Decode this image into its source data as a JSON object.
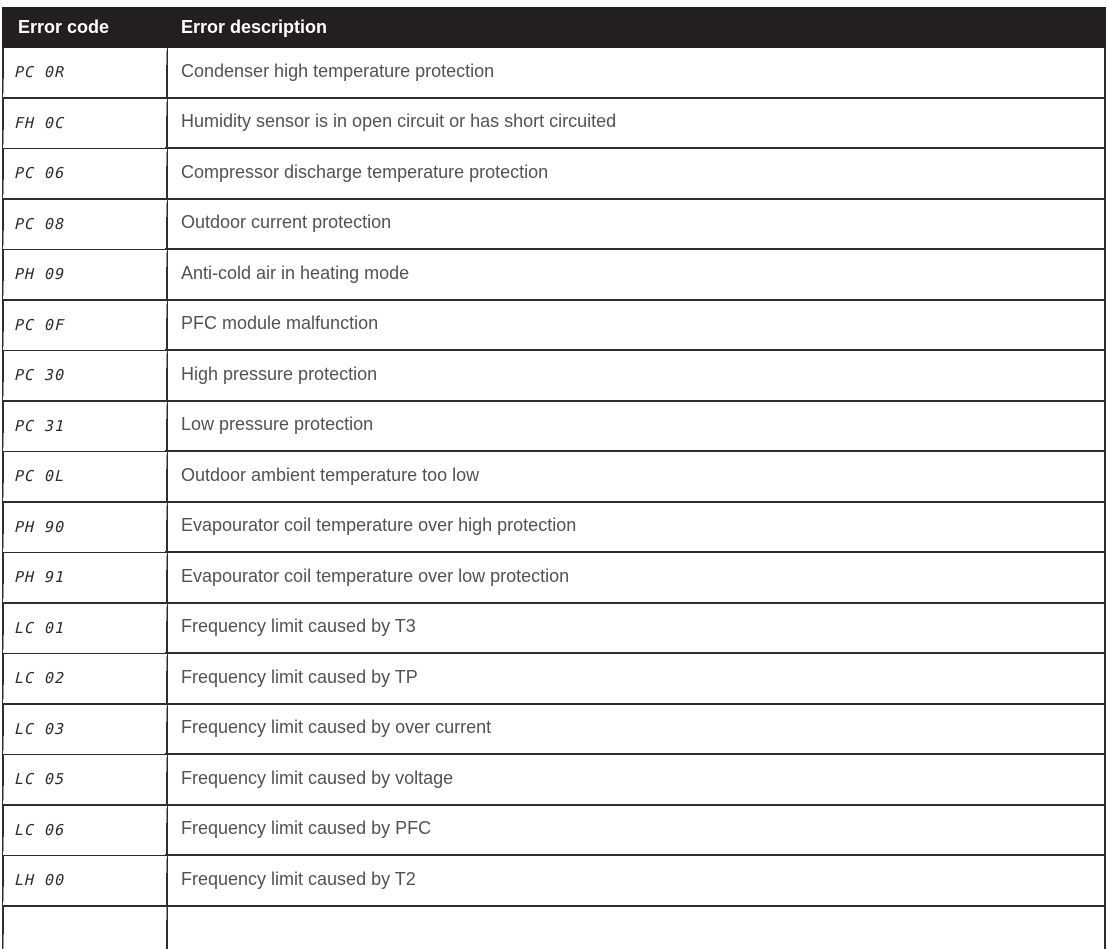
{
  "table": {
    "headers": {
      "code": "Error code",
      "description": "Error description"
    },
    "rows": [
      {
        "code": "PC 0R",
        "description": "Condenser high temperature protection"
      },
      {
        "code": "FH 0C",
        "description": "Humidity sensor is in open circuit or has short circuited"
      },
      {
        "code": "PC 06",
        "description": "Compressor discharge temperature protection"
      },
      {
        "code": "PC 08",
        "description": "Outdoor current protection"
      },
      {
        "code": "PH 09",
        "description": "Anti-cold air in heating mode"
      },
      {
        "code": "PC 0F",
        "description": "PFC module malfunction"
      },
      {
        "code": "PC 30",
        "description": "High pressure protection"
      },
      {
        "code": "PC 31",
        "description": "Low pressure protection"
      },
      {
        "code": "PC 0L",
        "description": "Outdoor ambient temperature too low"
      },
      {
        "code": "PH 90",
        "description": "Evapourator coil temperature over high protection"
      },
      {
        "code": "PH 91",
        "description": "Evapourator coil temperature over low protection"
      },
      {
        "code": "LC 01",
        "description": "Frequency limit caused by T3"
      },
      {
        "code": "LC 02",
        "description": "Frequency limit caused by TP"
      },
      {
        "code": "LC 03",
        "description": "Frequency limit caused by over current"
      },
      {
        "code": "LC 05",
        "description": "Frequency limit caused by voltage"
      },
      {
        "code": "LC 06",
        "description": "Frequency limit caused by PFC"
      },
      {
        "code": "LH 00",
        "description": "Frequency limit caused by T2"
      }
    ]
  },
  "colors": {
    "header_bg": "#231f20",
    "header_text": "#ffffff",
    "body_text": "#515254",
    "code_text": "#2b2b2d",
    "border": "#2e2e2e"
  }
}
